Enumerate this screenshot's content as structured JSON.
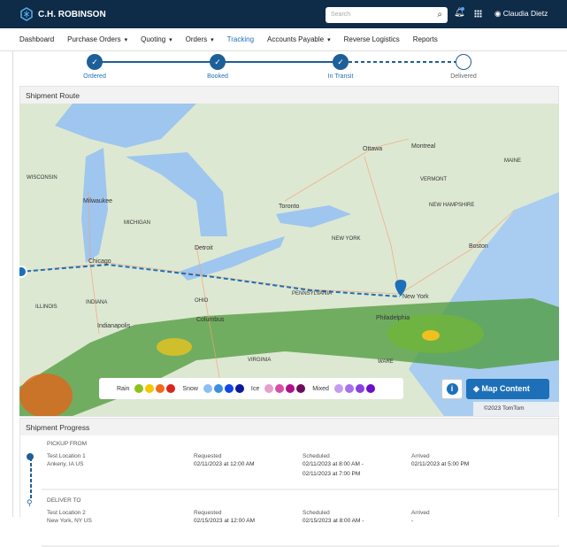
{
  "header": {
    "brand": "C.H. ROBINSON",
    "search_placeholder": "Search",
    "user": "Claudia Dietz"
  },
  "nav": [
    "Dashboard",
    "Purchase Orders",
    "Quoting",
    "Orders",
    "Tracking",
    "Accounts Payable",
    "Reverse Logistics",
    "Reports"
  ],
  "nav_dropdowns": [
    false,
    true,
    true,
    true,
    false,
    true,
    false,
    false
  ],
  "active_nav": "Tracking",
  "steps": [
    {
      "label": "Ordered",
      "done": true
    },
    {
      "label": "Booked",
      "done": true
    },
    {
      "label": "In Transit",
      "done": true
    },
    {
      "label": "Delivered",
      "done": false
    }
  ],
  "route": {
    "title": "Shipment Route",
    "map_labels": [
      "WISCONSIN",
      "Milwaukee",
      "MICHIGAN",
      "Chicago",
      "Detroit",
      "Toronto",
      "Ottawa",
      "Montreal",
      "VERMONT",
      "NEW HAMPSHIRE",
      "MAINE",
      "NEW YORK",
      "Boston",
      "PENNSYLVANIA",
      "New York",
      "Philadelphia",
      "ILLINOIS",
      "INDIANA",
      "OHIO",
      "Indianapolis",
      "Columbus",
      "VIRGINIA",
      "WARE"
    ],
    "legend": [
      {
        "label": "Rain",
        "colors": [
          "#8cc21a",
          "#f5c800",
          "#f26a1b",
          "#d9261c"
        ]
      },
      {
        "label": "Snow",
        "colors": [
          "#8fbff0",
          "#3a8fe0",
          "#1346e6",
          "#0a1a9a"
        ]
      },
      {
        "label": "Ice",
        "colors": [
          "#e6a0cc",
          "#d94fa6",
          "#b0108a",
          "#6e0c5a"
        ]
      },
      {
        "label": "Mixed",
        "colors": [
          "#c69cf0",
          "#a870ea",
          "#8a3fe0",
          "#6a10c8"
        ]
      }
    ],
    "map_content_label": "Map Content",
    "attribution": "©2023 TomTom"
  },
  "progress": {
    "title": "Shipment Progress",
    "stops": [
      {
        "type": "PICKUP FROM",
        "name": "Test Location 1",
        "city": "Ankeny, IA US",
        "requested_label": "Requested",
        "requested": "02/11/2023 at 12:00 AM",
        "scheduled_label": "Scheduled",
        "scheduled": [
          "02/11/2023 at 8:00 AM -",
          "02/11/2023 at 7:00 PM"
        ],
        "arrived_label": "Arrived",
        "arrived": "02/11/2023 at 5:00 PM"
      },
      {
        "type": "DELIVER TO",
        "name": "Test Location 2",
        "city": "New York, NY US",
        "requested_label": "Requested",
        "requested": "02/15/2023 at 12:00 AM",
        "scheduled_label": "Scheduled",
        "scheduled": [
          "02/15/2023 at 8:00 AM -",
          ""
        ],
        "arrived_label": "Arrived",
        "arrived": "-"
      }
    ]
  }
}
